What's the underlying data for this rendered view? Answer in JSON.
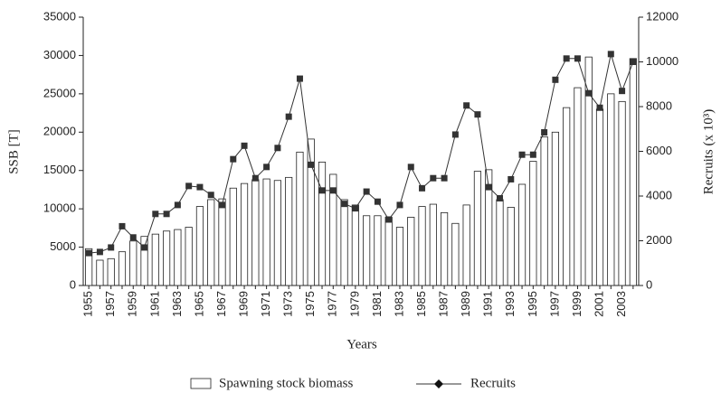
{
  "chart_data": {
    "type": "bar_line",
    "xlabel": "Years",
    "ylabel": "SSB [T]",
    "y2label": "Recruits (x 10³)",
    "categories": [
      "1955",
      null,
      "1957",
      null,
      "1959",
      null,
      "1961",
      null,
      "1963",
      null,
      "1965",
      null,
      "1967",
      null,
      "1969",
      null,
      "1971",
      null,
      "1973",
      null,
      "1975",
      null,
      "1977",
      null,
      "1979",
      null,
      "1981",
      null,
      "1983",
      null,
      "1985",
      null,
      "1987",
      null,
      "1989",
      null,
      "1991",
      null,
      "1993",
      null,
      "1995",
      null,
      "1997",
      null,
      "1999",
      null,
      "2001",
      null,
      "2003",
      null
    ],
    "series": [
      {
        "name": "Spawning stock biomass",
        "type": "bar",
        "color": "#ffffff",
        "values": [
          4800,
          3300,
          3500,
          4400,
          5800,
          6400,
          6700,
          7100,
          7300,
          7600,
          10300,
          11200,
          11300,
          12700,
          13300,
          13800,
          13900,
          13700,
          14100,
          17400,
          19100,
          16100,
          14500,
          11200,
          10500,
          9100,
          9100,
          8900,
          7600,
          8900,
          10300,
          10600,
          9500,
          8100,
          10500,
          14900,
          15100,
          11200,
          10200,
          13200,
          16200,
          19400,
          20000,
          23200,
          25800,
          29800,
          23000,
          25000,
          24000,
          29600
        ]
      },
      {
        "name": "Recruits",
        "type": "line",
        "axis": "y2",
        "color": "#333333",
        "values": [
          1450,
          1500,
          1700,
          2650,
          2150,
          1700,
          3200,
          3200,
          3600,
          4450,
          4400,
          4050,
          3600,
          5650,
          6250,
          4800,
          5300,
          6150,
          7550,
          9250,
          5400,
          4250,
          4250,
          3650,
          3450,
          4200,
          3750,
          2950,
          3600,
          5300,
          4350,
          4800,
          4800,
          6750,
          8050,
          7650,
          4400,
          3900,
          4750,
          5850,
          5850,
          6850,
          9200,
          10150,
          10150,
          8600,
          7950,
          10350,
          8700,
          10000
        ]
      }
    ],
    "ylim": [
      0,
      35000
    ],
    "yticks": [
      0,
      5000,
      10000,
      15000,
      20000,
      25000,
      30000,
      35000
    ],
    "y2lim": [
      0,
      12000
    ],
    "y2ticks": [
      0,
      2000,
      4000,
      6000,
      8000,
      10000,
      12000
    ],
    "grid": false,
    "legend": "bottom"
  }
}
